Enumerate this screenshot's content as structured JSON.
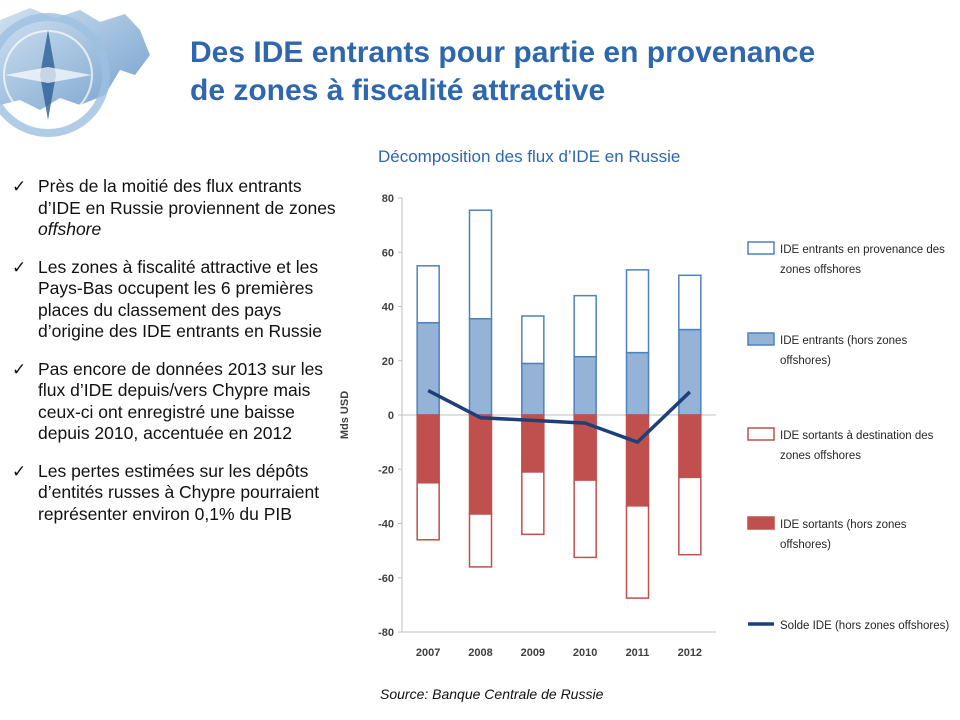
{
  "slide": {
    "title_line1": "Des IDE entrants pour partie en provenance",
    "title_line2": "de zones à fiscalité attractive"
  },
  "bullets": [
    {
      "text": "Près de la moitié des flux entrants d’IDE en Russie proviennent de zones ",
      "emph": "offshore"
    },
    {
      "text": "Les zones à fiscalité attractive et les Pays-Bas occupent les 6 premières places du classement des pays d’origine des IDE entrants en Russie",
      "emph": ""
    },
    {
      "text": "Pas encore de données 2013 sur les flux d’IDE depuis/vers Chypre mais ceux-ci ont enregistré une baisse depuis 2010, accentuée en 2012",
      "emph": ""
    },
    {
      "text": "Les pertes estimées sur les dépôts d’entités russes à Chypre pourraient représenter environ 0,1% du PIB",
      "emph": ""
    }
  ],
  "source": "Source: Banque Centrale de Russie",
  "colors": {
    "title": "#2e67ad",
    "blue_fill": "#95b3d7",
    "blue_stroke": "#4f81bd",
    "red_fill": "#c0504d",
    "red_stroke": "#c0504d",
    "line": "#1f3f7a",
    "axis": "#bfbfbf"
  },
  "chart_data": {
    "type": "bar",
    "title": "Décomposition des flux d’IDE en Russie",
    "ylabel": "Mds USD",
    "ylim": [
      -80,
      80
    ],
    "yticks": [
      80,
      60,
      40,
      20,
      0,
      -20,
      -40,
      -60,
      -80
    ],
    "categories": [
      "2007",
      "2008",
      "2009",
      "2010",
      "2011",
      "2012"
    ],
    "series": [
      {
        "name": "IDE entrants (hors zones offshores)",
        "kind": "stack_pos_base",
        "values": [
          34,
          35.5,
          19,
          21.5,
          23,
          31.5
        ]
      },
      {
        "name": "IDE entrants en provenance des zones offshores",
        "kind": "stack_pos_top",
        "values": [
          21,
          40,
          17.5,
          22.5,
          30.5,
          20
        ]
      },
      {
        "name": "IDE sortants (hors zones offshores)",
        "kind": "stack_neg_base",
        "values": [
          -25,
          -36.5,
          -21,
          -24,
          -33.5,
          -23
        ]
      },
      {
        "name": "IDE sortants à destination des zones offshores",
        "kind": "stack_neg_top",
        "values": [
          -21,
          -19.5,
          -23,
          -28.5,
          -34,
          -28.5
        ]
      },
      {
        "name": "Solde IDE (hors zones offshores)",
        "kind": "line",
        "values": [
          9,
          -1,
          -2,
          -3,
          -10,
          8.5
        ]
      }
    ],
    "legend": [
      {
        "label_line1": "IDE entrants en provenance des",
        "label_line2": "zones offshores",
        "swatch": "outline-blue"
      },
      {
        "label_line1": "IDE entrants (hors zones",
        "label_line2": "offshores)",
        "swatch": "fill-blue"
      },
      {
        "label_line1": "IDE sortants à destination des",
        "label_line2": "zones offshores",
        "swatch": "outline-red"
      },
      {
        "label_line1": "IDE sortants (hors zones",
        "label_line2": "offshores)",
        "swatch": "fill-red"
      },
      {
        "label_line1": "Solde IDE (hors zones offshores)",
        "label_line2": "",
        "swatch": "line"
      }
    ],
    "legend_position": "right"
  }
}
